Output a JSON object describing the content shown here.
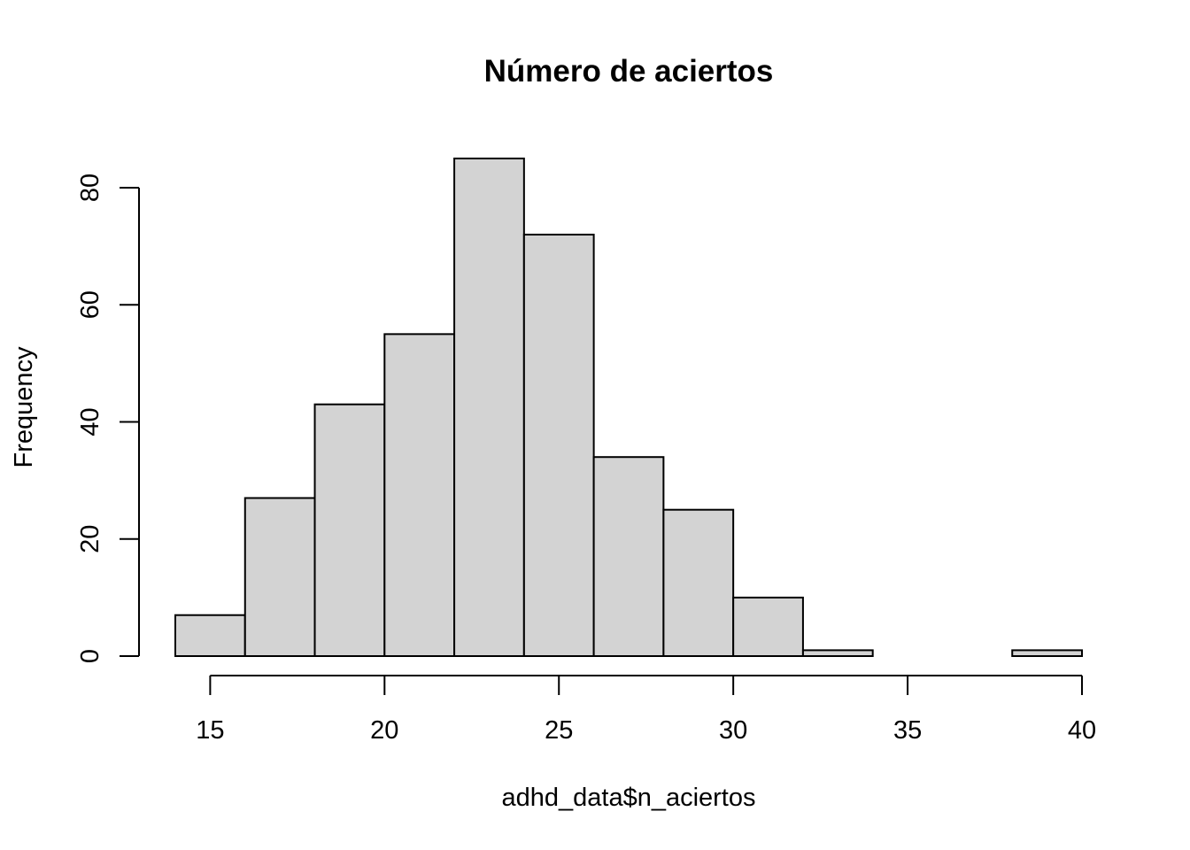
{
  "chart_data": {
    "type": "bar",
    "title": "Número de aciertos",
    "xlabel": "adhd_data$n_aciertos",
    "ylabel": "Frequency",
    "bin_edges": [
      14,
      16,
      18,
      20,
      22,
      24,
      26,
      28,
      30,
      32,
      34,
      36,
      38,
      40
    ],
    "values": [
      7,
      27,
      43,
      55,
      85,
      72,
      34,
      25,
      10,
      1,
      0,
      0,
      1
    ],
    "xlim": [
      14,
      40
    ],
    "ylim": [
      0,
      85
    ],
    "x_ticks": [
      15,
      20,
      25,
      30,
      35,
      40
    ],
    "y_ticks": [
      0,
      20,
      40,
      60,
      80
    ],
    "grid": false,
    "bar_color": "#d3d3d3"
  }
}
